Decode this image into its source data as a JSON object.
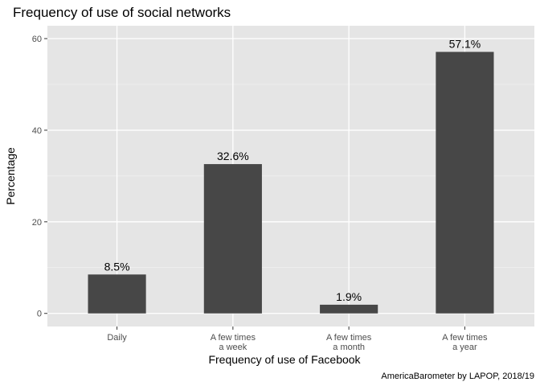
{
  "chart_data": {
    "type": "bar",
    "title": "Frequency of use of social networks",
    "xlabel": "Frequency of use of Facebook",
    "ylabel": "Percentage",
    "caption": "AmericaBarometer by LAPOP, 2018/19",
    "categories": [
      [
        "Daily"
      ],
      [
        "A few times",
        "a week"
      ],
      [
        "A few times",
        "a month"
      ],
      [
        "A few times",
        "a year"
      ]
    ],
    "values": [
      8.5,
      32.6,
      1.9,
      57.1
    ],
    "value_labels": [
      "8.5%",
      "32.6%",
      "1.9%",
      "57.1%"
    ],
    "y_ticks": [
      0,
      20,
      40,
      60
    ],
    "y_tick_labels": [
      "0",
      "20",
      "40",
      "60"
    ],
    "ylim": [
      -2.855,
      62.81
    ],
    "grid": true,
    "colors": {
      "bar": "#474747",
      "panel": "#e5e5e5",
      "grid_major": "#ffffff",
      "grid_minor": "#f2f2f2",
      "tick_text": "#4d4d4d",
      "tick": "#333333"
    }
  }
}
